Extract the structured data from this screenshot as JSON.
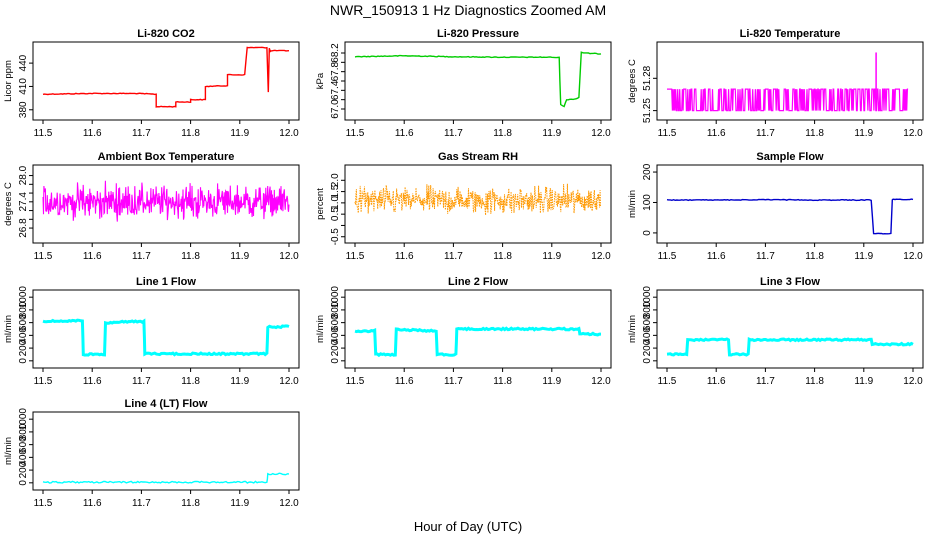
{
  "figure": {
    "title": "NWR_150913  1 Hz Diagnostics Zoomed AM",
    "xlabel": "Hour of Day (UTC)"
  },
  "chart_data": [
    {
      "type": "line",
      "title": "Li-820 CO2",
      "xlabel": "",
      "ylabel": "Licor ppm",
      "color": "#ff0000",
      "xlim": [
        11.5,
        12.0
      ],
      "ylim": [
        372,
        462
      ],
      "xticks": [
        "11.5",
        "11.6",
        "11.7",
        "11.8",
        "11.9",
        "12.0"
      ],
      "yticks": [
        380,
        410,
        440
      ],
      "ytick_labels": [
        "380",
        "410",
        "440"
      ],
      "x": [
        11.5,
        11.6,
        11.69,
        11.73,
        11.73,
        11.77,
        11.77,
        11.8,
        11.8,
        11.83,
        11.83,
        11.875,
        11.875,
        11.91,
        11.915,
        11.955,
        11.958,
        11.96,
        11.962,
        11.965,
        12.0
      ],
      "y": [
        400,
        401,
        401,
        400,
        384,
        384,
        390,
        390,
        393,
        393,
        410,
        411,
        425,
        425,
        460,
        460,
        403,
        459,
        455,
        456,
        456
      ]
    },
    {
      "type": "line",
      "title": "Li-820 Pressure",
      "xlabel": "",
      "ylabel": "kPa",
      "color": "#00cc00",
      "xlim": [
        11.5,
        12.0
      ],
      "ylim": [
        66.85,
        68.35
      ],
      "xticks": [
        "11.5",
        "11.6",
        "11.7",
        "11.8",
        "11.9",
        "12.0"
      ],
      "yticks": [
        67.0,
        67.2,
        67.4,
        67.6,
        67.8,
        68.0,
        68.2
      ],
      "ytick_labels": [
        "67.0",
        "",
        "67.4",
        "",
        "67.8",
        "",
        "68.2"
      ],
      "x": [
        11.5,
        11.6,
        11.7,
        11.8,
        11.9,
        11.915,
        11.918,
        11.925,
        11.93,
        11.95,
        11.955,
        11.96,
        11.965,
        12.0
      ],
      "y": [
        68.12,
        68.14,
        68.12,
        68.11,
        68.11,
        68.1,
        67.1,
        67.05,
        67.2,
        67.22,
        67.25,
        68.22,
        68.2,
        68.18
      ]
    },
    {
      "type": "line",
      "title": "Li-820 Temperature",
      "xlabel": "",
      "ylabel": "degrees C",
      "color": "#ff00ff",
      "xlim": [
        11.5,
        12.0
      ],
      "ylim": [
        51.245,
        51.31
      ],
      "xticks": [
        "11.5",
        "11.6",
        "11.7",
        "11.8",
        "11.9",
        "12.0"
      ],
      "yticks": [
        51.25,
        51.28
      ],
      "ytick_labels": [
        "51.25",
        "51.28"
      ],
      "levels": [
        51.25,
        51.27
      ],
      "spike": {
        "x": 11.925,
        "y": 51.304
      },
      "end_x": 11.99
    },
    {
      "type": "line",
      "title": "Ambient Box Temperature",
      "xlabel": "",
      "ylabel": "degrees C",
      "color": "#ff00ff",
      "xlim": [
        11.5,
        12.0
      ],
      "ylim": [
        26.55,
        28.15
      ],
      "xticks": [
        "11.5",
        "11.6",
        "11.7",
        "11.8",
        "11.9",
        "12.0"
      ],
      "yticks": [
        26.8,
        27.0,
        27.2,
        27.4,
        27.6,
        27.8,
        28.0
      ],
      "ytick_labels": [
        "26.8",
        "",
        "",
        "27.4",
        "",
        "",
        "28.0"
      ],
      "noise": {
        "mean": 27.4,
        "amplitude": 0.55
      }
    },
    {
      "type": "line",
      "title": "Gas Stream RH",
      "xlabel": "",
      "ylabel": "percent",
      "color": "#ff9900",
      "xlim": [
        11.5,
        12.0
      ],
      "ylim": [
        -0.6,
        2.5
      ],
      "xticks": [
        "11.5",
        "11.6",
        "11.7",
        "11.8",
        "11.9",
        "12.0"
      ],
      "yticks": [
        -0.5,
        0.0,
        0.5,
        1.0,
        1.5,
        2.0
      ],
      "ytick_labels": [
        "-0.5",
        "",
        "0.5",
        "1.0",
        "1.5",
        "2.0"
      ],
      "noise": {
        "mean": 1.1,
        "amplitude": 0.9
      }
    },
    {
      "type": "line",
      "title": "Sample Flow",
      "xlabel": "",
      "ylabel": "ml/min",
      "color": "#0000cc",
      "xlim": [
        11.5,
        12.0
      ],
      "ylim": [
        -20,
        210
      ],
      "xticks": [
        "11.5",
        "11.6",
        "11.7",
        "11.8",
        "11.9",
        "12.0"
      ],
      "yticks": [
        0,
        100,
        200
      ],
      "ytick_labels": [
        "0",
        "100",
        "200"
      ],
      "x": [
        11.5,
        11.6,
        11.7,
        11.8,
        11.915,
        11.92,
        11.955,
        11.958,
        11.96,
        12.0
      ],
      "y": [
        108,
        108,
        109,
        108,
        108,
        -2,
        -2,
        108,
        110,
        110
      ]
    },
    {
      "type": "line",
      "title": "Line 1 Flow",
      "xlabel": "",
      "ylabel": "ml/min",
      "color": "#00ffff",
      "xlim": [
        11.5,
        12.0
      ],
      "ylim": [
        -50,
        1050
      ],
      "xticks": [
        "11.5",
        "11.6",
        "11.7",
        "11.8",
        "11.9",
        "12.0"
      ],
      "yticks": [
        0,
        200,
        400,
        600,
        800,
        1000
      ],
      "ytick_labels": [
        "0",
        "200",
        "400",
        "600",
        "800",
        "1000"
      ],
      "x": [
        11.5,
        11.58,
        11.582,
        11.625,
        11.627,
        11.705,
        11.707,
        11.955,
        11.957,
        12.0
      ],
      "y": [
        620,
        630,
        100,
        100,
        600,
        620,
        110,
        110,
        530,
        540
      ]
    },
    {
      "type": "line",
      "title": "Line 2 Flow",
      "xlabel": "",
      "ylabel": "ml/min",
      "color": "#00ffff",
      "xlim": [
        11.5,
        12.0
      ],
      "ylim": [
        -50,
        1050
      ],
      "xticks": [
        "11.5",
        "11.6",
        "11.7",
        "11.8",
        "11.9",
        "12.0"
      ],
      "yticks": [
        0,
        200,
        400,
        600,
        800,
        1000
      ],
      "ytick_labels": [
        "0",
        "200",
        "400",
        "600",
        "800",
        "1000"
      ],
      "x": [
        11.5,
        11.54,
        11.542,
        11.582,
        11.584,
        11.665,
        11.667,
        11.705,
        11.707,
        11.955,
        11.957,
        12.0
      ],
      "y": [
        460,
        470,
        100,
        100,
        490,
        470,
        100,
        100,
        500,
        500,
        420,
        420
      ]
    },
    {
      "type": "line",
      "title": "Line 3 Flow",
      "xlabel": "",
      "ylabel": "ml/min",
      "color": "#00ffff",
      "xlim": [
        11.5,
        12.0
      ],
      "ylim": [
        -50,
        1050
      ],
      "xticks": [
        "11.5",
        "11.6",
        "11.7",
        "11.8",
        "11.9",
        "12.0"
      ],
      "yticks": [
        0,
        200,
        400,
        600,
        800,
        1000
      ],
      "ytick_labels": [
        "0",
        "200",
        "400",
        "600",
        "800",
        "1000"
      ],
      "x": [
        11.5,
        11.54,
        11.542,
        11.625,
        11.627,
        11.665,
        11.667,
        11.915,
        11.917,
        12.0
      ],
      "y": [
        100,
        100,
        330,
        330,
        100,
        100,
        330,
        330,
        260,
        260
      ]
    },
    {
      "type": "line",
      "title": "Line 4 (LT) Flow",
      "xlabel": "",
      "ylabel": "ml/min",
      "color": "#00ffff",
      "xlim": [
        11.5,
        12.0
      ],
      "ylim": [
        -50,
        1050
      ],
      "xticks": [
        "11.5",
        "11.6",
        "11.7",
        "11.8",
        "11.9",
        "12.0"
      ],
      "yticks": [
        0,
        200,
        400,
        600,
        800,
        1000
      ],
      "ytick_labels": [
        "0",
        "200",
        "400",
        "600",
        "800",
        "1000"
      ],
      "x": [
        11.5,
        11.955,
        11.957,
        12.0
      ],
      "y": [
        10,
        10,
        140,
        140
      ]
    }
  ]
}
